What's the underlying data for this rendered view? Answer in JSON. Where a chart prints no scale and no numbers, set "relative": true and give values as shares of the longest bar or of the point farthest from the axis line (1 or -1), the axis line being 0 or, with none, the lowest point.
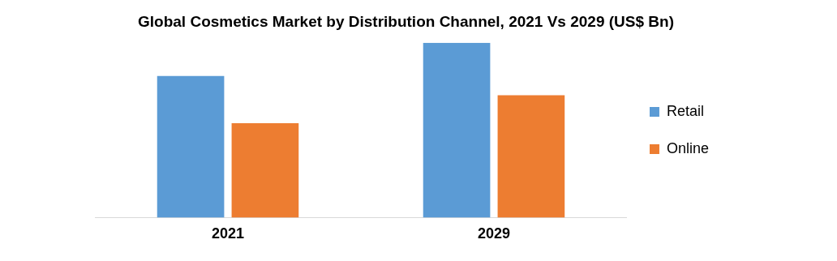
{
  "chart_data": {
    "type": "bar",
    "title": "Global Cosmetics Market by Distribution Channel, 2021 Vs 2029 (US$ Bn)",
    "relative": true,
    "categories": [
      "2021",
      "2029"
    ],
    "series": [
      {
        "name": "Retail",
        "color": "#5b9bd5",
        "values": [
          0.81,
          1
        ]
      },
      {
        "name": "Online",
        "color": "#ed7d31",
        "values": [
          0.54,
          0.7
        ]
      }
    ],
    "legend": "right",
    "grid": false
  }
}
